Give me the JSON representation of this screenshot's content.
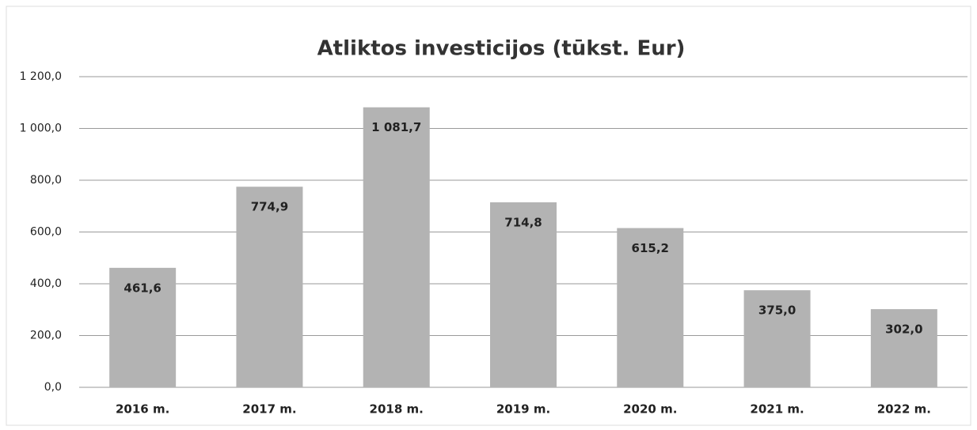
{
  "chart_data": {
    "type": "bar",
    "title": "Atliktos investicijos (tūkst. Eur)",
    "categories": [
      "2016 m.",
      "2017 m.",
      "2018 m.",
      "2019 m.",
      "2020 m.",
      "2021 m.",
      "2022 m."
    ],
    "values": [
      461.6,
      774.9,
      1081.7,
      714.8,
      615.2,
      375.0,
      302.0
    ],
    "value_labels": [
      "461,6",
      "774,9",
      "1 081,7",
      "714,8",
      "615,2",
      "375,0",
      "302,0"
    ],
    "color": "#b3b3b3",
    "ylim": [
      0,
      1200
    ],
    "yticks": [
      {
        "value": 0,
        "label": "0,0"
      },
      {
        "value": 200,
        "label": "200,0"
      },
      {
        "value": 400,
        "label": "400,0"
      },
      {
        "value": 600,
        "label": "600,0"
      },
      {
        "value": 800,
        "label": "800,0"
      },
      {
        "value": 1000,
        "label": "1 000,0"
      },
      {
        "value": 1200,
        "label": "1 200,0"
      }
    ],
    "grid": true
  }
}
